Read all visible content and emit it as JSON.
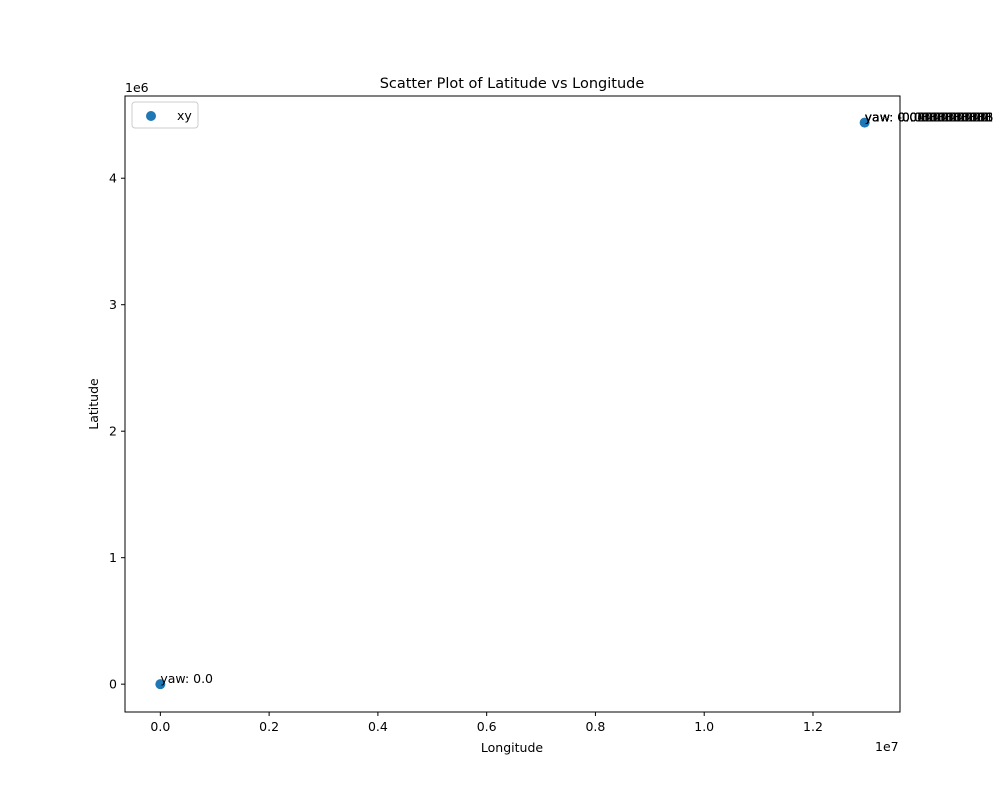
{
  "chart_data": {
    "type": "scatter",
    "title": "Scatter Plot of Latitude vs Longitude",
    "xlabel": "Longitude",
    "ylabel": "Latitude",
    "x_offset_label": "1e7",
    "y_offset_label": "1e6",
    "xlim": [
      -650000,
      13600000
    ],
    "ylim": [
      -220000,
      4650000
    ],
    "x_ticks": [
      {
        "value": 0,
        "label": "0.0"
      },
      {
        "value": 2000000,
        "label": "0.2"
      },
      {
        "value": 4000000,
        "label": "0.4"
      },
      {
        "value": 6000000,
        "label": "0.6"
      },
      {
        "value": 8000000,
        "label": "0.8"
      },
      {
        "value": 10000000,
        "label": "1.0"
      },
      {
        "value": 12000000,
        "label": "1.2"
      }
    ],
    "y_ticks": [
      {
        "value": 0,
        "label": "0"
      },
      {
        "value": 1000000,
        "label": "1"
      },
      {
        "value": 2000000,
        "label": "2"
      },
      {
        "value": 3000000,
        "label": "3"
      },
      {
        "value": 4000000,
        "label": "4"
      }
    ],
    "grid": false,
    "legend": {
      "placement": "top-left",
      "entries": [
        "xy"
      ]
    },
    "series": [
      {
        "name": "xy",
        "color": "#1f77b4",
        "points": [
          {
            "x": 0,
            "y": 0
          },
          {
            "x": 12950000,
            "y": 4440000
          }
        ]
      }
    ],
    "annotations": [
      {
        "x": 0,
        "y": 0,
        "text": "yaw: 0.0"
      },
      {
        "x": 12950000,
        "y": 4440000,
        "text": "yaw: 0.0000000000"
      },
      {
        "x": 12950000,
        "y": 4440000,
        "text": "yaw: -0.0111111111"
      },
      {
        "x": 12950000,
        "y": 4440000,
        "text": "yaw: 0.0222222222"
      },
      {
        "x": 12950000,
        "y": 4440000,
        "text": "yaw: -0.0333333333"
      },
      {
        "x": 12950000,
        "y": 4440000,
        "text": "yaw: 0.0444444444"
      },
      {
        "x": 12950000,
        "y": 4440000,
        "text": "yaw: 0.0555555555"
      },
      {
        "x": 12950000,
        "y": 4440000,
        "text": "yaw: -0.0666666666"
      }
    ]
  }
}
